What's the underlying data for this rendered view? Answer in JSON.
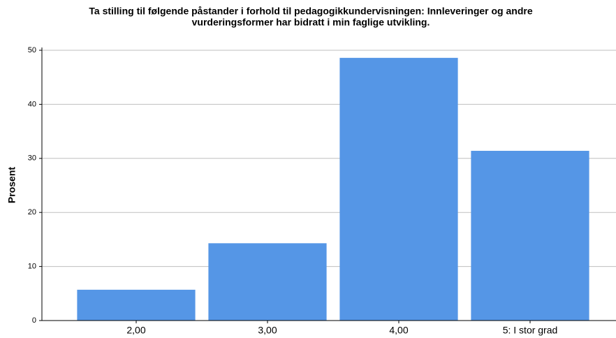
{
  "chart_data": {
    "type": "bar",
    "title": [
      "Ta stilling til følgende påstander i forhold til pedagogikkundervisningen: Innleveringer og andre",
      "vurderingsformer har bidratt i min faglige utvikling."
    ],
    "y_label": "Prosent",
    "categories": [
      "2,00",
      "3,00",
      "4,00",
      "5: I stor grad"
    ],
    "values": [
      5.7,
      14.3,
      48.6,
      31.4
    ],
    "color": "#5596e6",
    "ylim": [
      0,
      50
    ],
    "yticks": [
      0,
      10,
      20,
      30,
      40,
      50
    ],
    "grid": true
  }
}
